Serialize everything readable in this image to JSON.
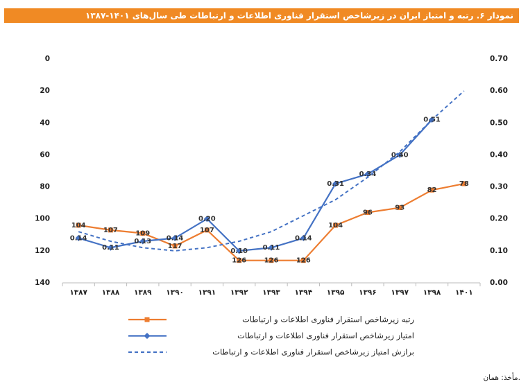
{
  "chart_data": {
    "type": "line",
    "title": "نمودار ۶. رتبه و امتیاز ایران در زیرشاخص استقرار فناوری اطلاعات و ارتباطات طی سال‌های ۱۴۰۱-۱۳۸۷",
    "source": "مأخذ: همان.",
    "categories": [
      "۱۳۸۷",
      "۱۳۸۸",
      "۱۳۸۹",
      "۱۳۹۰",
      "۱۳۹۱",
      "۱۳۹۲",
      "۱۳۹۳",
      "۱۳۹۴",
      "۱۳۹۵",
      "۱۳۹۶",
      "۱۳۹۷",
      "۱۳۹۸",
      "۱۴۰۱"
    ],
    "ylim": [
      0,
      140
    ],
    "y_inverted": true,
    "yticks": [
      0,
      20,
      40,
      60,
      80,
      100,
      120,
      140
    ],
    "y2lim": [
      0,
      0.7
    ],
    "y2ticks": [
      {
        "value": 0,
        "label": "0.00"
      },
      {
        "value": 0.1,
        "label": "0.10"
      },
      {
        "value": 0.2,
        "label": "0.20"
      },
      {
        "value": 0.3,
        "label": "0.30"
      },
      {
        "value": 0.4,
        "label": "0.40"
      },
      {
        "value": 0.5,
        "label": "0.50"
      },
      {
        "value": 0.6,
        "label": "0.60"
      },
      {
        "value": 0.7,
        "label": "0.70"
      }
    ],
    "grid": false,
    "legend": "bottom",
    "series": [
      {
        "name": "رتبه زیرشاخص استقرار فناوری اطلاعات و ارتباطات",
        "color": "#ed7d31",
        "marker": "square",
        "labels": true,
        "values": [
          104,
          107,
          109,
          117,
          107,
          126,
          126,
          126,
          104,
          96,
          93,
          82,
          78
        ]
      },
      {
        "name": "امتیاز زیرشاخص استقرار فناوری اطلاعات و ارتباطات",
        "color": "#4472c4",
        "marker": "diamond",
        "labels": true,
        "axis": "y2",
        "values": [
          0.14,
          0.11,
          0.13,
          0.14,
          0.2,
          0.1,
          0.11,
          0.14,
          0.31,
          0.34,
          0.4,
          0.51,
          null
        ],
        "value_labels": [
          "0.14",
          "0.11",
          "0.13",
          "0.14",
          "0.20",
          "0.10",
          "0.11",
          "0.14",
          "0.31",
          "0.34",
          "0.40",
          "0.51",
          null
        ]
      },
      {
        "name": "برازش امتیاز زیرشاخص استقرار فناوری اطلاعات و ارتباطات",
        "color": "#4472c4",
        "dashed": true,
        "axis": "y2",
        "values": [
          0.16,
          0.13,
          0.11,
          0.1,
          0.11,
          0.13,
          0.16,
          0.21,
          0.26,
          0.33,
          0.41,
          0.51,
          0.6
        ]
      }
    ]
  }
}
